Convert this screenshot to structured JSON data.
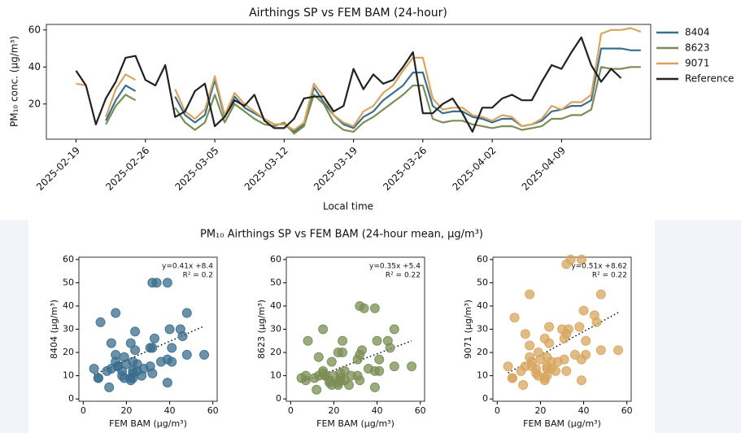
{
  "chart_data": [
    {
      "type": "line",
      "title": "Airthings SP vs FEM BAM (24-hour)",
      "y_label": "PM₁₀ conc. (μg/m³)",
      "x_label": "Local time",
      "x": [
        "2025-02-19",
        "2025-02-20",
        "2025-02-21",
        "2025-02-22",
        "2025-02-23",
        "2025-02-24",
        "2025-02-25",
        "2025-02-26",
        "2025-02-27",
        "2025-02-28",
        "2025-03-01",
        "2025-03-02",
        "2025-03-03",
        "2025-03-04",
        "2025-03-05",
        "2025-03-06",
        "2025-03-07",
        "2025-03-08",
        "2025-03-09",
        "2025-03-10",
        "2025-03-11",
        "2025-03-12",
        "2025-03-13",
        "2025-03-14",
        "2025-03-15",
        "2025-03-16",
        "2025-03-17",
        "2025-03-18",
        "2025-03-19",
        "2025-03-20",
        "2025-03-21",
        "2025-03-22",
        "2025-03-23",
        "2025-03-24",
        "2025-03-25",
        "2025-03-26",
        "2025-03-27",
        "2025-03-28",
        "2025-03-29",
        "2025-03-30",
        "2025-03-31",
        "2025-04-01",
        "2025-04-02",
        "2025-04-03",
        "2025-04-04",
        "2025-04-05",
        "2025-04-06",
        "2025-04-07",
        "2025-04-08",
        "2025-04-09",
        "2025-04-10",
        "2025-04-11",
        "2025-04-12",
        "2025-04-13",
        "2025-04-14",
        "2025-04-15",
        "2025-04-16",
        "2025-04-17"
      ],
      "xlim": [
        "2025-02-16",
        "2025-04-18"
      ],
      "xticks": [
        "2025-02-19",
        "2025-02-26",
        "2025-03-05",
        "2025-03-12",
        "2025-03-19",
        "2025-03-26",
        "2025-04-02",
        "2025-04-09"
      ],
      "ylim": [
        1,
        63
      ],
      "yticks": [
        20,
        40,
        60
      ],
      "series": [
        {
          "name": "8404",
          "color": "#3b6e8e",
          "values": [
            null,
            null,
            null,
            11,
            22,
            30,
            27,
            null,
            null,
            null,
            24,
            14,
            10,
            14,
            33,
            13,
            24,
            18,
            15,
            12,
            9,
            9,
            5,
            9,
            29,
            21,
            14,
            9,
            7,
            13,
            16,
            22,
            26,
            30,
            37,
            37,
            19,
            15,
            16,
            16,
            13,
            12,
            10,
            12,
            12,
            8,
            9,
            11,
            16,
            17,
            19,
            19,
            22,
            50,
            50,
            50,
            49,
            49
          ]
        },
        {
          "name": "8623",
          "color": "#7b8d56",
          "values": [
            null,
            null,
            null,
            9,
            19,
            25,
            22,
            null,
            null,
            null,
            18,
            10,
            6,
            10,
            25,
            10,
            20,
            16,
            12,
            9,
            8,
            10,
            4,
            8,
            25,
            20,
            10,
            6,
            5,
            10,
            13,
            17,
            21,
            25,
            30,
            30,
            12,
            10,
            11,
            11,
            9,
            8,
            7,
            8,
            8,
            6,
            7,
            8,
            12,
            12,
            14,
            14,
            17,
            40,
            39,
            39,
            40,
            40
          ]
        },
        {
          "name": "9071",
          "color": "#d8a55f",
          "values": [
            31,
            30,
            null,
            13,
            28,
            36,
            33,
            null,
            null,
            null,
            28,
            16,
            12,
            17,
            35,
            14,
            26,
            20,
            16,
            12,
            9,
            9,
            6,
            10,
            31,
            24,
            14,
            10,
            8,
            16,
            19,
            26,
            30,
            38,
            45,
            45,
            23,
            17,
            18,
            18,
            14,
            13,
            11,
            14,
            13,
            8,
            9,
            12,
            19,
            17,
            21,
            21,
            25,
            58,
            60,
            60,
            61,
            59
          ]
        },
        {
          "name": "Reference",
          "color": "#222222",
          "values": [
            38,
            30,
            9,
            23,
            32,
            45,
            46,
            33,
            30,
            41,
            13,
            16,
            27,
            31,
            8,
            13,
            22,
            19,
            25,
            11,
            7,
            7,
            12,
            23,
            24,
            24,
            16,
            19,
            39,
            28,
            36,
            31,
            33,
            40,
            48,
            15,
            15,
            20,
            23,
            15,
            5,
            18,
            18,
            23,
            25,
            22,
            22,
            32,
            41,
            39,
            48,
            56,
            41,
            32,
            39,
            34,
            null,
            null
          ]
        }
      ]
    },
    {
      "type": "scatter",
      "x_label": "FEM BAM (μg/m³)",
      "y_label": "8404 (μg/m³)",
      "color": "#3b6e8e",
      "xlim": [
        -2,
        62
      ],
      "xticks": [
        0,
        20,
        40,
        60
      ],
      "ylim": [
        -1,
        61
      ],
      "yticks": [
        0,
        10,
        20,
        30,
        40,
        50,
        60
      ],
      "annotation": [
        "y=0.41x +8.4",
        "R² = 0.2"
      ],
      "fit_slope": 0.41,
      "fit_intercept": 8.4,
      "x": [
        23,
        32,
        45,
        46,
        13,
        16,
        27,
        31,
        8,
        13,
        22,
        19,
        25,
        11,
        7,
        7,
        12,
        23,
        24,
        24,
        16,
        19,
        39,
        28,
        36,
        31,
        33,
        40,
        48,
        15,
        15,
        20,
        23,
        15,
        5,
        18,
        18,
        23,
        25,
        22,
        22,
        32,
        41,
        39,
        48,
        56,
        41,
        32,
        39,
        34
      ],
      "y": [
        11,
        22,
        30,
        27,
        24,
        14,
        10,
        14,
        33,
        13,
        24,
        18,
        15,
        12,
        9,
        9,
        5,
        9,
        29,
        21,
        14,
        9,
        7,
        13,
        16,
        22,
        26,
        30,
        37,
        37,
        19,
        15,
        16,
        16,
        13,
        12,
        10,
        12,
        12,
        8,
        9,
        11,
        16,
        17,
        19,
        19,
        22,
        50,
        50,
        50
      ]
    },
    {
      "type": "scatter",
      "x_label": "FEM BAM (μg/m³)",
      "y_label": "8623 (μg/m³)",
      "color": "#7b8d56",
      "xlim": [
        -2,
        62
      ],
      "xticks": [
        0,
        20,
        40,
        60
      ],
      "ylim": [
        -1,
        61
      ],
      "yticks": [
        0,
        10,
        20,
        30,
        40,
        50,
        60
      ],
      "annotation": [
        "y=0.35x +5.4",
        "R² = 0.22"
      ],
      "fit_slope": 0.35,
      "fit_intercept": 5.4,
      "x": [
        23,
        32,
        45,
        46,
        13,
        16,
        27,
        31,
        8,
        13,
        22,
        19,
        25,
        11,
        7,
        7,
        12,
        23,
        24,
        24,
        16,
        19,
        39,
        28,
        36,
        31,
        33,
        40,
        48,
        15,
        15,
        20,
        23,
        15,
        5,
        18,
        18,
        23,
        25,
        22,
        22,
        32,
        41,
        39,
        48,
        56,
        41,
        32,
        39,
        34
      ],
      "y": [
        9,
        19,
        25,
        22,
        18,
        10,
        6,
        10,
        25,
        10,
        20,
        16,
        12,
        9,
        8,
        10,
        4,
        8,
        25,
        20,
        10,
        6,
        5,
        10,
        13,
        17,
        21,
        25,
        30,
        30,
        12,
        10,
        11,
        11,
        9,
        8,
        7,
        8,
        8,
        6,
        7,
        8,
        12,
        12,
        14,
        14,
        17,
        40,
        39,
        39
      ]
    },
    {
      "type": "scatter",
      "x_label": "FEM BAM (μg/m³)",
      "y_label": "9071 (μg/m³)",
      "color": "#d8a55f",
      "xlim": [
        -2,
        62
      ],
      "xticks": [
        0,
        20,
        40,
        60
      ],
      "ylim": [
        -1,
        61
      ],
      "yticks": [
        0,
        10,
        20,
        30,
        40,
        50,
        60
      ],
      "annotation": [
        "y=0.51x +8.62",
        "R² = 0.22"
      ],
      "fit_slope": 0.51,
      "fit_intercept": 8.62,
      "x": [
        38,
        30,
        23,
        32,
        45,
        46,
        13,
        16,
        27,
        31,
        8,
        13,
        22,
        19,
        25,
        11,
        7,
        7,
        12,
        23,
        24,
        24,
        16,
        19,
        39,
        28,
        36,
        31,
        33,
        40,
        48,
        15,
        15,
        20,
        23,
        15,
        5,
        18,
        18,
        23,
        25,
        22,
        22,
        32,
        41,
        39,
        48,
        56,
        41,
        32,
        39,
        34
      ],
      "y": [
        31,
        30,
        13,
        28,
        36,
        33,
        28,
        16,
        12,
        17,
        35,
        14,
        26,
        20,
        16,
        12,
        9,
        9,
        6,
        10,
        31,
        24,
        14,
        10,
        8,
        16,
        19,
        26,
        30,
        38,
        45,
        45,
        23,
        17,
        18,
        18,
        14,
        13,
        11,
        14,
        13,
        8,
        9,
        12,
        19,
        17,
        21,
        21,
        25,
        58,
        60,
        60
      ]
    }
  ],
  "scatter_suptitle": "PM₁₀ Airthings SP vs FEM BAM (24-hour mean, μg/m³)"
}
